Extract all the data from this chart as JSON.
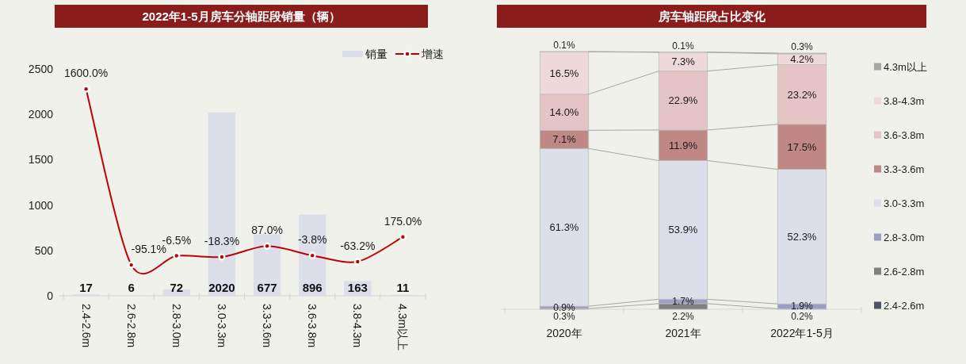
{
  "chart_data": [
    {
      "type": "bar",
      "title": "2022年1-5月房车分轴距段销量（辆）",
      "categories": [
        "2.4-2.6m",
        "2.6-2.8m",
        "2.8-3.0m",
        "3.0-3.3m",
        "3.3-3.6m",
        "3.6-3.8m",
        "3.8-4.3m",
        "4.3m以上"
      ],
      "series": [
        {
          "name": "销量",
          "type": "bar",
          "color": "#dcdeea",
          "values": [
            17,
            6,
            72,
            2020,
            677,
            896,
            163,
            11
          ],
          "data_labels": true
        },
        {
          "name": "增速",
          "type": "line",
          "axis": "y2",
          "color": "#c00000",
          "marker": "circle",
          "values": [
            1600.0,
            -95.1,
            -6.5,
            -18.3,
            87.0,
            -3.8,
            -63.2,
            175.0
          ],
          "value_labels": [
            "1600.0%",
            "-95.1%",
            "-6.5%",
            "-18.3%",
            "87.0%",
            "-3.8%",
            "-63.2%",
            "175.0%"
          ]
        }
      ],
      "ylim": [
        0,
        2500
      ],
      "yticks": [
        0,
        500,
        1000,
        1500,
        2000,
        2500
      ],
      "legend": "top right"
    },
    {
      "type": "bar",
      "stacked": true,
      "title": "房车轴距段占比变化",
      "categories": [
        "2020年",
        "2021年",
        "2022年1-5月"
      ],
      "series": [
        {
          "name": "2.4-2.6m",
          "color": "#4f5666",
          "values": [
            null,
            null,
            null
          ],
          "value_labels": [
            null,
            null,
            null
          ]
        },
        {
          "name": "2.6-2.8m",
          "color": "#808080",
          "values": [
            0.3,
            2.2,
            0.2
          ],
          "value_labels": [
            "0.3%",
            "2.2%",
            "0.2%"
          ]
        },
        {
          "name": "2.8-3.0m",
          "color": "#9c9ec3",
          "values": [
            0.9,
            1.7,
            1.9
          ],
          "value_labels": [
            "0.9%",
            "1.7%",
            "1.9%"
          ]
        },
        {
          "name": "3.0-3.3m",
          "color": "#dcdeea",
          "values": [
            61.3,
            53.9,
            52.3
          ],
          "value_labels": [
            "61.3%",
            "53.9%",
            "52.3%"
          ]
        },
        {
          "name": "3.3-3.6m",
          "color": "#c08884",
          "values": [
            7.1,
            11.9,
            17.5
          ],
          "value_labels": [
            "7.1%",
            "11.9%",
            "17.5%"
          ]
        },
        {
          "name": "3.6-3.8m",
          "color": "#e5c4c6",
          "values": [
            14.0,
            22.9,
            23.2
          ],
          "value_labels": [
            "14.0%",
            "22.9%",
            "23.2%"
          ]
        },
        {
          "name": "3.8-4.3m",
          "color": "#efd8d9",
          "values": [
            16.5,
            7.3,
            4.2
          ],
          "value_labels": [
            "16.5%",
            "7.3%",
            "4.2%"
          ]
        },
        {
          "name": "4.3m以上",
          "color": "#a6a6a6",
          "values": [
            0.1,
            0.1,
            0.3
          ],
          "value_labels": [
            "0.1%",
            "0.1%",
            "0.3%"
          ]
        }
      ],
      "ylim": [
        0,
        100.2
      ],
      "legend": "right",
      "tick_labels": "x"
    }
  ]
}
